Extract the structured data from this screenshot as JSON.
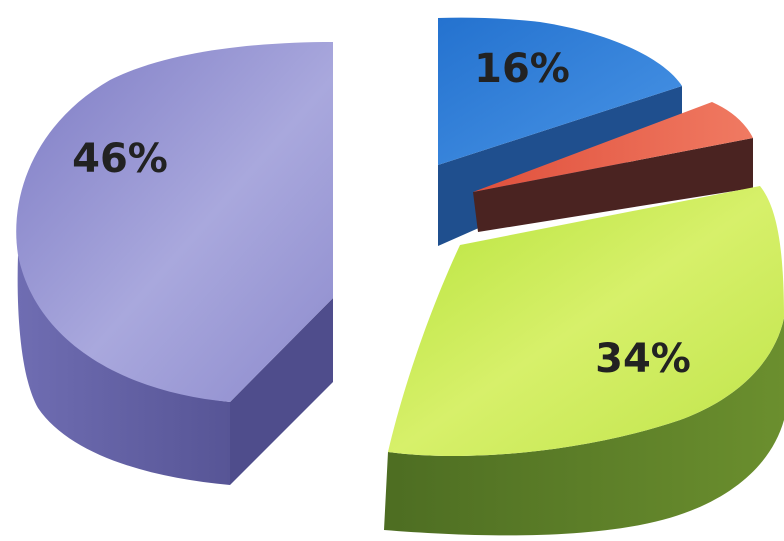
{
  "chart_data": {
    "type": "pie",
    "style": "3d-exploded",
    "title": "",
    "categories": [
      "",
      "",
      "",
      ""
    ],
    "values": [
      46,
      16,
      4,
      34
    ],
    "labels": [
      "46%",
      "16%",
      "",
      "34%"
    ],
    "colors": [
      "#8886c8",
      "#2f7ed8",
      "#e25a45",
      "#c6e94a"
    ],
    "side_colors": [
      "#5f5ea2",
      "#1d4f8c",
      "#4e2422",
      "#5a7a26"
    ],
    "legend": "none"
  }
}
